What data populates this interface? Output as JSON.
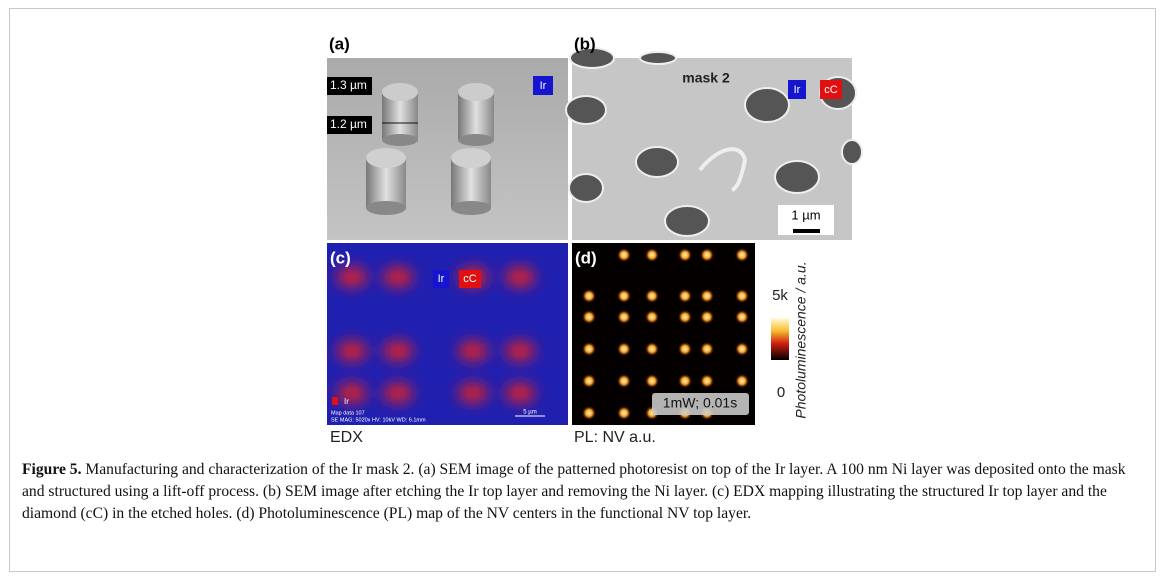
{
  "figure": {
    "panels": [
      {
        "label": "(a)",
        "annotations": [
          "1.3 µm",
          "1.2 µm",
          "Ir"
        ]
      },
      {
        "label": "(b)",
        "annotations": [
          "mask 2",
          "Ir",
          "cC",
          "1 µm"
        ]
      },
      {
        "label": "(c)",
        "annotations": [
          "Ir",
          "cC",
          "Ir",
          "Map data 107",
          "SE  MAG: 5020x  HV: 10kV  WD: 6.1mm",
          "5 µm"
        ],
        "caption": "EDX"
      },
      {
        "label": "(d)",
        "annotations": [
          "1mW; 0.01s"
        ],
        "caption": "PL: NV a.u.",
        "colorbar": {
          "top": "5k",
          "bottom": "0",
          "title": "Photoluminescence / a.u."
        }
      }
    ],
    "caption": {
      "label": "Figure 5.",
      "text": "Manufacturing and characterization of the Ir mask 2. (a) SEM image of the patterned photoresist on top of the Ir layer. A 100 nm Ni layer was deposited onto the mask and structured using a lift-off process. (b) SEM image after etching the Ir top layer and removing the Ni layer. (c) EDX mapping illustrating the structured Ir top layer and the diamond (cC) in the etched holes. (d) Photoluminescence (PL) map of the NV centers in the functional NV top layer."
    }
  }
}
